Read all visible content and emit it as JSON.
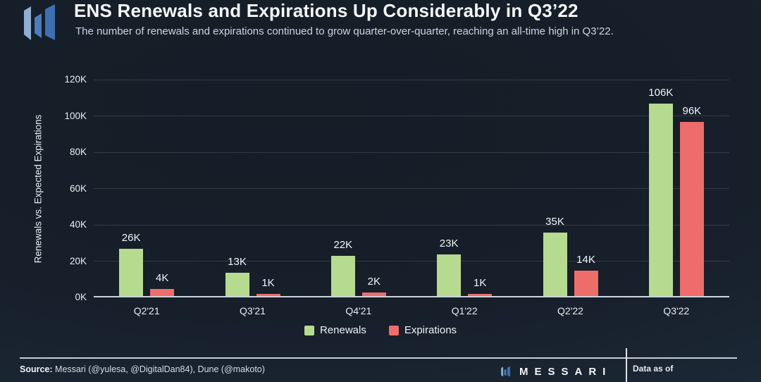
{
  "chart_data": {
    "type": "bar",
    "title": "ENS Renewals and Expirations Up Considerably in Q3’22",
    "subtitle": "The number of renewals and expirations continued to grow quarter-over-quarter, reaching an all-time high in Q3’22.",
    "categories": [
      "Q2'21",
      "Q3'21",
      "Q4'21",
      "Q1'22",
      "Q2'22",
      "Q3'22"
    ],
    "series": [
      {
        "name": "Renewals",
        "color": "#b7db8e",
        "values": [
          26,
          13,
          22,
          23,
          35,
          106
        ]
      },
      {
        "name": "Expirations",
        "color": "#ee6c69",
        "values": [
          4,
          1,
          2,
          1,
          14,
          96
        ]
      }
    ],
    "value_unit": "K",
    "value_scale": 1000,
    "ylabel": "Renewals vs. Expected Expirations",
    "yticks": [
      "120K",
      "100K",
      "80K",
      "60K",
      "40K",
      "20K",
      "0K"
    ],
    "ylim": [
      0,
      120
    ],
    "grid": true,
    "legend_position": "bottom-center"
  },
  "footer": {
    "source_label": "Source:",
    "source_text": "Messari (@yulesa, @DigitalDan84), Dune (@makoto)",
    "wordmark": "MESSARI",
    "data_as_of_label": "Data as of"
  }
}
